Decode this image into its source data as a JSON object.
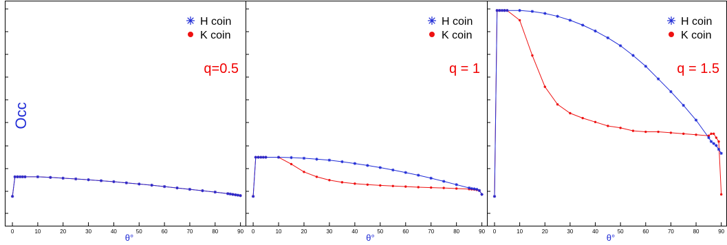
{
  "colors": {
    "h_series": "#1f2bd6",
    "k_series": "#ee1111",
    "q_label": "#f00000",
    "axis_label": "#1f2bd6"
  },
  "ylabel": "Occ",
  "chart_data": [
    {
      "type": "line",
      "q_label": "q=0.5",
      "xlabel": "θ°",
      "xlim": [
        -3,
        92
      ],
      "ylim": [
        -0.15,
        1.0
      ],
      "x_ticks": [
        0,
        10,
        20,
        30,
        40,
        50,
        60,
        70,
        80,
        90
      ],
      "legend": [
        "H coin",
        "K coin"
      ],
      "legend_position": "top-right",
      "series": [
        {
          "name": "H coin",
          "marker": "asterisk",
          "x": [
            0,
            1,
            2,
            3,
            4,
            5,
            10,
            15,
            20,
            25,
            30,
            35,
            40,
            45,
            50,
            55,
            60,
            65,
            70,
            75,
            80,
            85,
            86,
            87,
            88,
            89,
            90
          ],
          "y": [
            0,
            0.1,
            0.1,
            0.1,
            0.1,
            0.1,
            0.1,
            0.097,
            0.093,
            0.089,
            0.085,
            0.08,
            0.075,
            0.069,
            0.063,
            0.057,
            0.05,
            0.043,
            0.036,
            0.029,
            0.022,
            0.014,
            0.012,
            0.01,
            0.008,
            0.006,
            0.004
          ]
        },
        {
          "name": "K coin",
          "marker": "dot",
          "x": [
            0,
            1,
            2,
            3,
            4,
            5,
            10,
            15,
            20,
            25,
            30,
            35,
            40,
            45,
            50,
            55,
            60,
            65,
            70,
            75,
            80,
            85,
            86,
            87,
            88,
            89,
            90
          ],
          "y": [
            0,
            0.1,
            0.1,
            0.1,
            0.1,
            0.1,
            0.1,
            0.097,
            0.093,
            0.089,
            0.085,
            0.08,
            0.075,
            0.069,
            0.063,
            0.057,
            0.05,
            0.043,
            0.036,
            0.029,
            0.022,
            0.014,
            0.012,
            0.01,
            0.008,
            0.006,
            0.004
          ]
        }
      ]
    },
    {
      "type": "line",
      "q_label": "q = 1",
      "xlabel": "θ°",
      "xlim": [
        -3,
        92
      ],
      "ylim": [
        -0.15,
        1.0
      ],
      "x_ticks": [
        0,
        10,
        20,
        30,
        40,
        50,
        60,
        70,
        80,
        90
      ],
      "legend": [
        "H coin",
        "K coin"
      ],
      "legend_position": "top-right",
      "series": [
        {
          "name": "H coin",
          "marker": "asterisk",
          "x": [
            0,
            1,
            2,
            3,
            4,
            5,
            10,
            15,
            20,
            25,
            30,
            35,
            40,
            45,
            50,
            55,
            60,
            65,
            70,
            75,
            80,
            85,
            86,
            87,
            88,
            89,
            90
          ],
          "y": [
            0,
            0.2,
            0.2,
            0.2,
            0.2,
            0.2,
            0.2,
            0.198,
            0.195,
            0.19,
            0.185,
            0.177,
            0.168,
            0.158,
            0.147,
            0.135,
            0.122,
            0.108,
            0.093,
            0.077,
            0.06,
            0.043,
            0.04,
            0.038,
            0.036,
            0.03,
            0.01
          ]
        },
        {
          "name": "K coin",
          "marker": "dot",
          "x": [
            0,
            1,
            2,
            3,
            4,
            5,
            10,
            15,
            20,
            25,
            30,
            35,
            40,
            45,
            50,
            55,
            60,
            65,
            70,
            75,
            80,
            85,
            86,
            87,
            88,
            89,
            90
          ],
          "y": [
            0,
            0.2,
            0.2,
            0.2,
            0.2,
            0.2,
            0.2,
            0.165,
            0.125,
            0.1,
            0.083,
            0.072,
            0.065,
            0.06,
            0.056,
            0.053,
            0.05,
            0.047,
            0.045,
            0.043,
            0.04,
            0.037,
            0.036,
            0.035,
            0.033,
            0.03,
            0.01
          ]
        }
      ]
    },
    {
      "type": "line",
      "q_label": "q = 1.5",
      "xlabel": "θ°",
      "xlim": [
        -3,
        92
      ],
      "ylim": [
        -0.15,
        1.0
      ],
      "x_ticks": [
        0,
        10,
        20,
        30,
        40,
        50,
        60,
        70,
        80,
        90
      ],
      "legend": [
        "H coin",
        "K coin"
      ],
      "legend_position": "top-right",
      "series": [
        {
          "name": "H coin",
          "marker": "asterisk",
          "x": [
            0,
            1,
            2,
            3,
            4,
            5,
            10,
            15,
            20,
            25,
            30,
            35,
            40,
            45,
            50,
            55,
            60,
            65,
            70,
            75,
            80,
            85,
            86,
            87,
            88,
            89,
            90
          ],
          "y": [
            0,
            0.95,
            0.95,
            0.95,
            0.95,
            0.95,
            0.95,
            0.945,
            0.935,
            0.92,
            0.9,
            0.875,
            0.845,
            0.81,
            0.77,
            0.72,
            0.665,
            0.6,
            0.535,
            0.465,
            0.39,
            0.3,
            0.28,
            0.27,
            0.26,
            0.24,
            0.22
          ]
        },
        {
          "name": "K coin",
          "marker": "dot",
          "x": [
            0,
            1,
            2,
            3,
            4,
            5,
            10,
            15,
            20,
            25,
            30,
            35,
            40,
            45,
            50,
            55,
            60,
            65,
            70,
            75,
            80,
            85,
            86,
            87,
            88,
            89,
            90
          ],
          "y": [
            0,
            0.95,
            0.95,
            0.95,
            0.95,
            0.95,
            0.9,
            0.72,
            0.56,
            0.47,
            0.425,
            0.4,
            0.38,
            0.36,
            0.35,
            0.335,
            0.33,
            0.33,
            0.325,
            0.32,
            0.315,
            0.31,
            0.32,
            0.32,
            0.3,
            0.28,
            0.01
          ]
        }
      ]
    }
  ]
}
